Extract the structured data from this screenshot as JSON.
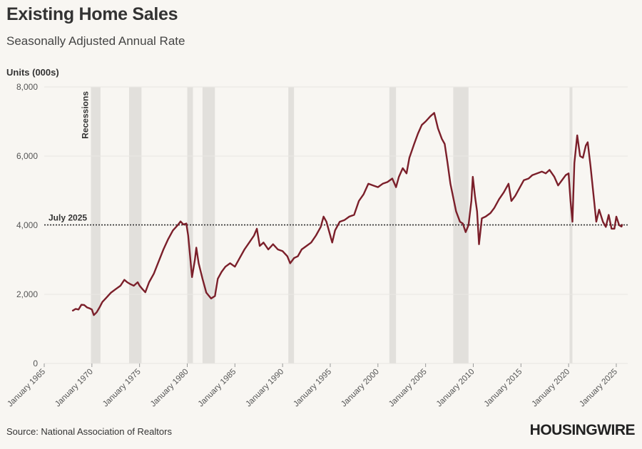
{
  "header": {
    "title": "Existing Home Sales",
    "subtitle": "Seasonally Adjusted Annual Rate"
  },
  "footer": {
    "source": "Source: National Association of Realtors",
    "logo": "HOUSINGWIRE"
  },
  "colors": {
    "line": "#7b1f2a",
    "recession": "#e2e0dc",
    "background": "#f8f6f2",
    "grid": "#e9e7e3"
  },
  "chart_data": {
    "type": "line",
    "ylabel": "Units (000s)",
    "ylim": [
      0,
      8000
    ],
    "yticks": [
      0,
      2000,
      4000,
      6000,
      8000
    ],
    "ytick_labels": [
      "0",
      "2,000",
      "4,000",
      "6,000",
      "8,000"
    ],
    "xlim": [
      1965,
      2026.2
    ],
    "xticks": [
      1965,
      1970,
      1975,
      1980,
      1985,
      1990,
      1995,
      2000,
      2005,
      2010,
      2015,
      2020,
      2025
    ],
    "xtick_labels": [
      "January 1965",
      "January 1970",
      "January 1975",
      "January 1980",
      "January 1985",
      "January 1990",
      "January 1995",
      "January 2000",
      "January 2005",
      "January 2010",
      "January 2015",
      "January 2020",
      "January 2025"
    ],
    "recession_label": "Recessions",
    "recessions": [
      [
        1969.9,
        1970.9
      ],
      [
        1973.9,
        1975.2
      ],
      [
        1980.0,
        1980.6
      ],
      [
        1981.6,
        1982.9
      ],
      [
        1990.6,
        1991.2
      ],
      [
        2001.2,
        2001.9
      ],
      [
        2007.9,
        2009.5
      ],
      [
        2020.1,
        2020.4
      ]
    ],
    "reference_line": {
      "label": "July 2025",
      "value": 4010
    },
    "grid": "horizontal",
    "series": [
      {
        "points": [
          [
            1968.0,
            1530
          ],
          [
            1968.3,
            1580
          ],
          [
            1968.6,
            1560
          ],
          [
            1968.9,
            1700
          ],
          [
            1969.2,
            1690
          ],
          [
            1969.5,
            1620
          ],
          [
            1969.8,
            1590
          ],
          [
            1970.0,
            1560
          ],
          [
            1970.2,
            1400
          ],
          [
            1970.5,
            1480
          ],
          [
            1970.8,
            1620
          ],
          [
            1971.1,
            1780
          ],
          [
            1971.5,
            1900
          ],
          [
            1972.0,
            2050
          ],
          [
            1972.5,
            2150
          ],
          [
            1973.0,
            2250
          ],
          [
            1973.4,
            2420
          ],
          [
            1973.7,
            2350
          ],
          [
            1974.0,
            2300
          ],
          [
            1974.4,
            2250
          ],
          [
            1974.8,
            2350
          ],
          [
            1975.0,
            2250
          ],
          [
            1975.3,
            2150
          ],
          [
            1975.6,
            2060
          ],
          [
            1976.0,
            2350
          ],
          [
            1976.5,
            2600
          ],
          [
            1977.0,
            2950
          ],
          [
            1977.5,
            3300
          ],
          [
            1978.0,
            3600
          ],
          [
            1978.5,
            3850
          ],
          [
            1979.0,
            4000
          ],
          [
            1979.3,
            4110
          ],
          [
            1979.6,
            4020
          ],
          [
            1979.9,
            4050
          ],
          [
            1980.1,
            3700
          ],
          [
            1980.3,
            3100
          ],
          [
            1980.5,
            2500
          ],
          [
            1980.8,
            3000
          ],
          [
            1980.95,
            3350
          ],
          [
            1981.2,
            2900
          ],
          [
            1981.6,
            2450
          ],
          [
            1982.0,
            2050
          ],
          [
            1982.5,
            1880
          ],
          [
            1982.9,
            1950
          ],
          [
            1983.2,
            2450
          ],
          [
            1983.6,
            2650
          ],
          [
            1984.0,
            2800
          ],
          [
            1984.5,
            2900
          ],
          [
            1985.0,
            2800
          ],
          [
            1985.5,
            3050
          ],
          [
            1986.0,
            3300
          ],
          [
            1986.5,
            3500
          ],
          [
            1987.0,
            3700
          ],
          [
            1987.3,
            3900
          ],
          [
            1987.6,
            3400
          ],
          [
            1988.0,
            3500
          ],
          [
            1988.5,
            3300
          ],
          [
            1989.0,
            3450
          ],
          [
            1989.5,
            3300
          ],
          [
            1990.0,
            3250
          ],
          [
            1990.5,
            3100
          ],
          [
            1990.8,
            2900
          ],
          [
            1991.2,
            3050
          ],
          [
            1991.6,
            3100
          ],
          [
            1992.0,
            3300
          ],
          [
            1992.5,
            3400
          ],
          [
            1993.0,
            3500
          ],
          [
            1993.5,
            3700
          ],
          [
            1994.0,
            3950
          ],
          [
            1994.3,
            4250
          ],
          [
            1994.6,
            4100
          ],
          [
            1995.0,
            3700
          ],
          [
            1995.2,
            3500
          ],
          [
            1995.5,
            3850
          ],
          [
            1996.0,
            4100
          ],
          [
            1996.5,
            4150
          ],
          [
            1997.0,
            4250
          ],
          [
            1997.5,
            4300
          ],
          [
            1998.0,
            4700
          ],
          [
            1998.5,
            4900
          ],
          [
            1999.0,
            5200
          ],
          [
            1999.5,
            5150
          ],
          [
            2000.0,
            5100
          ],
          [
            2000.5,
            5200
          ],
          [
            2001.0,
            5250
          ],
          [
            2001.5,
            5350
          ],
          [
            2001.9,
            5100
          ],
          [
            2002.2,
            5400
          ],
          [
            2002.6,
            5650
          ],
          [
            2003.0,
            5500
          ],
          [
            2003.3,
            5950
          ],
          [
            2003.8,
            6350
          ],
          [
            2004.2,
            6650
          ],
          [
            2004.6,
            6900
          ],
          [
            2005.0,
            7000
          ],
          [
            2005.5,
            7150
          ],
          [
            2005.9,
            7250
          ],
          [
            2006.3,
            6800
          ],
          [
            2006.7,
            6500
          ],
          [
            2007.0,
            6350
          ],
          [
            2007.3,
            5800
          ],
          [
            2007.6,
            5200
          ],
          [
            2007.9,
            4800
          ],
          [
            2008.2,
            4400
          ],
          [
            2008.6,
            4100
          ],
          [
            2008.9,
            4050
          ],
          [
            2009.2,
            3800
          ],
          [
            2009.5,
            4000
          ],
          [
            2009.8,
            4700
          ],
          [
            2009.95,
            5400
          ],
          [
            2010.2,
            4800
          ],
          [
            2010.4,
            4400
          ],
          [
            2010.6,
            3450
          ],
          [
            2010.9,
            4200
          ],
          [
            2011.3,
            4250
          ],
          [
            2011.8,
            4350
          ],
          [
            2012.2,
            4500
          ],
          [
            2012.7,
            4750
          ],
          [
            2013.2,
            4950
          ],
          [
            2013.7,
            5200
          ],
          [
            2014.0,
            4700
          ],
          [
            2014.4,
            4850
          ],
          [
            2014.9,
            5100
          ],
          [
            2015.3,
            5300
          ],
          [
            2015.8,
            5350
          ],
          [
            2016.2,
            5450
          ],
          [
            2016.7,
            5500
          ],
          [
            2017.2,
            5550
          ],
          [
            2017.6,
            5500
          ],
          [
            2018.0,
            5600
          ],
          [
            2018.5,
            5400
          ],
          [
            2018.9,
            5150
          ],
          [
            2019.3,
            5300
          ],
          [
            2019.7,
            5450
          ],
          [
            2020.0,
            5500
          ],
          [
            2020.2,
            4700
          ],
          [
            2020.4,
            4100
          ],
          [
            2020.6,
            5800
          ],
          [
            2020.9,
            6600
          ],
          [
            2021.2,
            6000
          ],
          [
            2021.5,
            5950
          ],
          [
            2021.8,
            6300
          ],
          [
            2022.0,
            6400
          ],
          [
            2022.3,
            5700
          ],
          [
            2022.6,
            4900
          ],
          [
            2022.9,
            4100
          ],
          [
            2023.2,
            4450
          ],
          [
            2023.6,
            4100
          ],
          [
            2023.9,
            3950
          ],
          [
            2024.2,
            4300
          ],
          [
            2024.5,
            3900
          ],
          [
            2024.8,
            3900
          ],
          [
            2025.0,
            4250
          ],
          [
            2025.3,
            4000
          ],
          [
            2025.55,
            3960
          ],
          [
            2025.6,
            4010
          ]
        ]
      }
    ]
  }
}
